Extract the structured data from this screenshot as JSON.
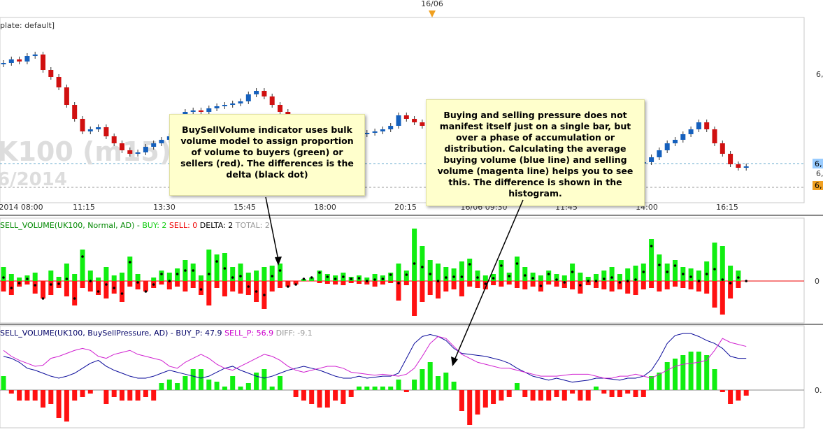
{
  "header": {
    "date_marker": "16/06",
    "template": "plate: default]",
    "watermark_symbol": "K100 (m15)",
    "watermark_date": "6/2014"
  },
  "time_axis": [
    "2014 08:00",
    "11:15",
    "13:30",
    "15:45",
    "18:00",
    "20:15",
    "16/06 09:30",
    "11:45",
    "14:00",
    "16:15"
  ],
  "price_axis": [
    "6,",
    "6,",
    "6,",
    "6,"
  ],
  "candles": {
    "closes": [
      210,
      215,
      212,
      220,
      222,
      200,
      190,
      175,
      150,
      130,
      112,
      115,
      118,
      105,
      95,
      85,
      80,
      82,
      90,
      95,
      100,
      105,
      115,
      140,
      142,
      140,
      145,
      148,
      150,
      152,
      155,
      165,
      170,
      162,
      150,
      140,
      130,
      120,
      115,
      110,
      105,
      100,
      98,
      100,
      104,
      108,
      110,
      112,
      115,
      120,
      135,
      130,
      125,
      120,
      125,
      128,
      130,
      126,
      122,
      118,
      115,
      112,
      108,
      104,
      100,
      98,
      95,
      92,
      90,
      88,
      86,
      84,
      82,
      80,
      78,
      76,
      74,
      72,
      70,
      68,
      66,
      68,
      75,
      85,
      95,
      100,
      108,
      115,
      125,
      115,
      95,
      80,
      65,
      60,
      62
    ]
  },
  "volume_panel": {
    "title": "SELL_VOLUME(UK100, Normal, AD) -",
    "buy_label": "BUY: 2",
    "sell_label": "SELL: 0",
    "delta_label": "DELTA: 2",
    "total_label": "TOTAL: 2",
    "zero_label": "0",
    "buy": [
      20,
      10,
      5,
      8,
      12,
      0,
      15,
      6,
      25,
      10,
      45,
      15,
      5,
      20,
      8,
      12,
      35,
      10,
      0,
      5,
      15,
      12,
      18,
      30,
      25,
      8,
      45,
      38,
      40,
      20,
      25,
      12,
      15,
      20,
      22,
      25,
      0,
      0,
      3,
      5,
      15,
      10,
      8,
      12,
      6,
      8,
      5,
      10,
      8,
      12,
      25,
      15,
      75,
      50,
      30,
      25,
      20,
      18,
      28,
      32,
      15,
      8,
      10,
      30,
      12,
      35,
      20,
      12,
      8,
      15,
      10,
      8,
      25,
      12,
      6,
      10,
      15,
      20,
      10,
      18,
      22,
      25,
      60,
      38,
      25,
      30,
      20,
      18,
      15,
      28,
      55,
      50,
      22,
      15,
      0
    ],
    "sell": [
      15,
      20,
      8,
      5,
      18,
      25,
      20,
      10,
      22,
      35,
      10,
      15,
      20,
      25,
      18,
      30,
      8,
      12,
      15,
      10,
      5,
      12,
      8,
      15,
      10,
      20,
      35,
      10,
      22,
      15,
      18,
      20,
      30,
      40,
      15,
      10,
      8,
      5,
      0,
      0,
      3,
      4,
      5,
      6,
      3,
      4,
      5,
      8,
      5,
      3,
      28,
      6,
      50,
      30,
      20,
      25,
      15,
      12,
      22,
      8,
      10,
      12,
      6,
      8,
      5,
      10,
      12,
      8,
      15,
      5,
      8,
      10,
      12,
      18,
      6,
      10,
      12,
      15,
      12,
      18,
      20,
      12,
      10,
      15,
      12,
      8,
      10,
      12,
      15,
      18,
      38,
      48,
      25,
      10,
      0
    ]
  },
  "pressure_panel": {
    "title": "SELL_VOLUME(UK100, BuySellPressure, AD) -",
    "buy_label": "BUY_P: 47.9",
    "sell_label": "SELL_P: 56.9",
    "diff_label": "DIFF: -9.1",
    "zero_label": "0.",
    "diff": [
      20,
      -5,
      -15,
      -15,
      -15,
      -25,
      -20,
      -40,
      -45,
      -15,
      -10,
      -5,
      0,
      -20,
      -10,
      -15,
      -15,
      -15,
      -10,
      -15,
      10,
      15,
      10,
      20,
      30,
      30,
      15,
      12,
      5,
      20,
      5,
      10,
      25,
      30,
      5,
      20,
      0,
      -10,
      -15,
      -20,
      -25,
      -25,
      -15,
      -20,
      -10,
      5,
      5,
      5,
      5,
      5,
      15,
      -3,
      15,
      30,
      40,
      20,
      25,
      12,
      -30,
      -50,
      -35,
      -25,
      -20,
      -15,
      -10,
      10,
      -10,
      -15,
      -15,
      -15,
      -10,
      -15,
      -5,
      -15,
      -15,
      5,
      -5,
      -10,
      -10,
      -5,
      -10,
      -10,
      20,
      25,
      40,
      45,
      50,
      55,
      55,
      50,
      30,
      -3,
      -20,
      -15,
      -8
    ],
    "buy_p": [
      72,
      70,
      66,
      60,
      58,
      55,
      52,
      50,
      52,
      55,
      60,
      65,
      68,
      62,
      58,
      55,
      52,
      50,
      50,
      52,
      55,
      58,
      56,
      54,
      52,
      50,
      52,
      56,
      60,
      62,
      58,
      55,
      52,
      50,
      52,
      55,
      58,
      60,
      62,
      60,
      58,
      55,
      52,
      50,
      50,
      52,
      50,
      51,
      52,
      52,
      55,
      70,
      85,
      92,
      94,
      92,
      88,
      80,
      75,
      74,
      73,
      72,
      70,
      68,
      65,
      60,
      56,
      52,
      50,
      48,
      50,
      48,
      46,
      47,
      48,
      50,
      50,
      49,
      48,
      50,
      50,
      52,
      58,
      70,
      85,
      93,
      95,
      95,
      92,
      88,
      85,
      80,
      72,
      70,
      70
    ],
    "sell_p": [
      78,
      72,
      68,
      65,
      62,
      63,
      70,
      72,
      75,
      78,
      80,
      78,
      72,
      70,
      74,
      76,
      78,
      74,
      72,
      70,
      68,
      62,
      60,
      66,
      70,
      74,
      70,
      64,
      60,
      58,
      62,
      66,
      70,
      74,
      72,
      68,
      62,
      58,
      56,
      58,
      60,
      62,
      62,
      60,
      56,
      55,
      54,
      53,
      54,
      53,
      52,
      54,
      60,
      72,
      85,
      92,
      90,
      82,
      74,
      70,
      66,
      64,
      62,
      60,
      60,
      58,
      56,
      54,
      52,
      52,
      52,
      53,
      54,
      54,
      54,
      52,
      50,
      50,
      52,
      52,
      54,
      52,
      50,
      54,
      58,
      62,
      64,
      65,
      66,
      68,
      78,
      90,
      86,
      84,
      82
    ]
  },
  "callouts": [
    "BuySellVolume indicator uses  bulk volume model to assign proportion of volume to buyers (green) or sellers (red). The differences is the delta (black dot)",
    "Buying and selling pressure does not manifest itself just on a single bar, but over a phase of accumulation or distribution. Calculating the average buying volume (blue line) and selling volume (magenta line) helps you to see this. The difference is shown in the histogram."
  ]
}
